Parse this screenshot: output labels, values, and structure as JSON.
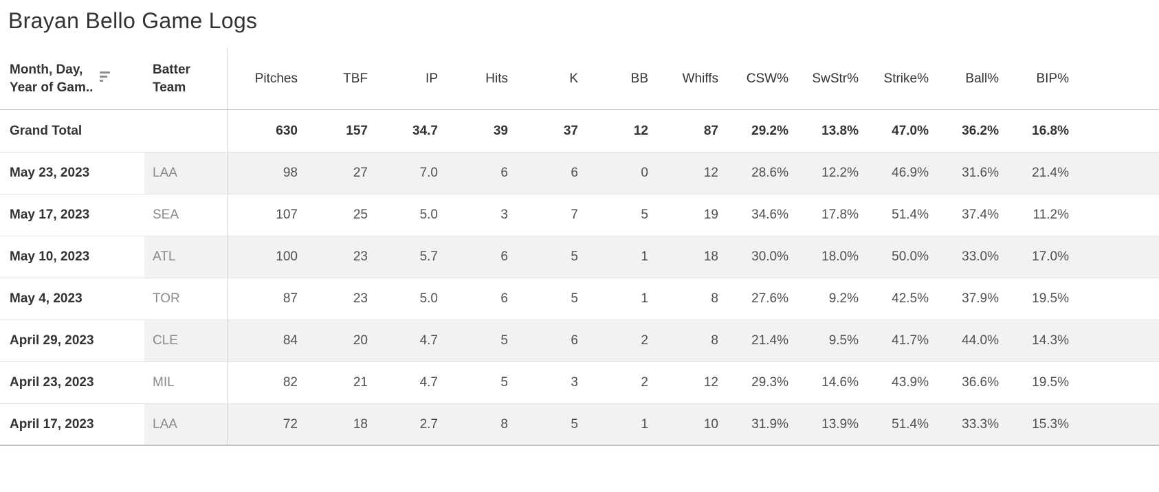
{
  "title": "Brayan Bello Game Logs",
  "header": {
    "date_field_line1": "Month, Day,",
    "date_field_line2": "Year of Gam..",
    "team_field_line1": "Batter",
    "team_field_line2": "Team"
  },
  "chart_data": {
    "type": "table",
    "title": "Brayan Bello Game Logs",
    "row_dimension": "Month, Day, Year of Gam..",
    "team_column": "Batter Team",
    "measure_columns": [
      "Pitches",
      "TBF",
      "IP",
      "Hits",
      "K",
      "BB",
      "Whiffs",
      "CSW%",
      "SwStr%",
      "Strike%",
      "Ball%",
      "BIP%"
    ],
    "grand_total": {
      "label": "Grand Total",
      "values": [
        "630",
        "157",
        "34.7",
        "39",
        "37",
        "12",
        "87",
        "29.2%",
        "13.8%",
        "47.0%",
        "36.2%",
        "16.8%"
      ]
    },
    "rows": [
      {
        "date": "May 23, 2023",
        "team": "LAA",
        "shaded": true,
        "values": [
          "98",
          "27",
          "7.0",
          "6",
          "6",
          "0",
          "12",
          "28.6%",
          "12.2%",
          "46.9%",
          "31.6%",
          "21.4%"
        ]
      },
      {
        "date": "May 17, 2023",
        "team": "SEA",
        "shaded": false,
        "values": [
          "107",
          "25",
          "5.0",
          "3",
          "7",
          "5",
          "19",
          "34.6%",
          "17.8%",
          "51.4%",
          "37.4%",
          "11.2%"
        ]
      },
      {
        "date": "May 10, 2023",
        "team": "ATL",
        "shaded": true,
        "values": [
          "100",
          "23",
          "5.7",
          "6",
          "5",
          "1",
          "18",
          "30.0%",
          "18.0%",
          "50.0%",
          "33.0%",
          "17.0%"
        ]
      },
      {
        "date": "May 4, 2023",
        "team": "TOR",
        "shaded": false,
        "values": [
          "87",
          "23",
          "5.0",
          "6",
          "5",
          "1",
          "8",
          "27.6%",
          "9.2%",
          "42.5%",
          "37.9%",
          "19.5%"
        ]
      },
      {
        "date": "April 29, 2023",
        "team": "CLE",
        "shaded": true,
        "values": [
          "84",
          "20",
          "4.7",
          "5",
          "6",
          "2",
          "8",
          "21.4%",
          "9.5%",
          "41.7%",
          "44.0%",
          "14.3%"
        ]
      },
      {
        "date": "April 23, 2023",
        "team": "MIL",
        "shaded": false,
        "values": [
          "82",
          "21",
          "4.7",
          "5",
          "3",
          "2",
          "12",
          "29.3%",
          "14.6%",
          "43.9%",
          "36.6%",
          "19.5%"
        ]
      },
      {
        "date": "April 17, 2023",
        "team": "LAA",
        "shaded": true,
        "values": [
          "72",
          "18",
          "2.7",
          "8",
          "5",
          "1",
          "10",
          "31.9%",
          "13.9%",
          "51.4%",
          "33.3%",
          "15.3%"
        ]
      }
    ]
  },
  "icons": {
    "sort": "sort-descending-icon"
  },
  "colors": {
    "band": "#f2f2f2",
    "header_text": "#333333",
    "team_text": "#8a8a8a",
    "value_text": "#4f4f4f",
    "divider": "#d4d4d4",
    "row_border": "#e3e3e3",
    "sort_icon": "#8f8f8f"
  }
}
